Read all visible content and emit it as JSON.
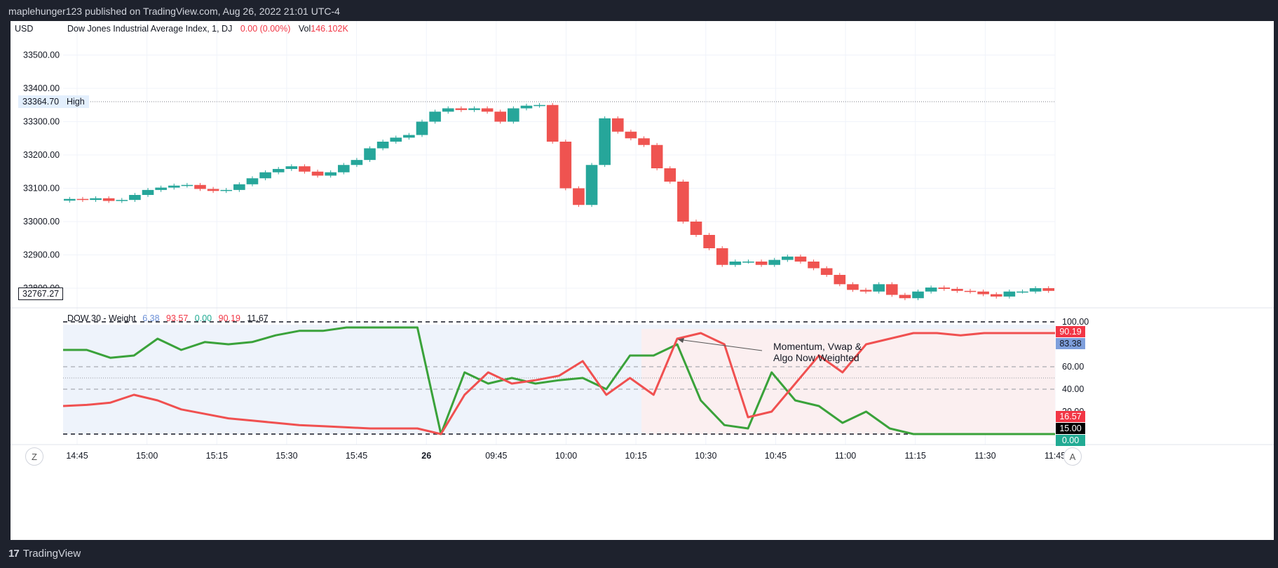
{
  "header": {
    "published": "maplehunger123 published on TradingView.com, Aug 26, 2022 21:01 UTC-4"
  },
  "main_pane": {
    "currency": "USD",
    "symbol": "Dow Jones Industrial Average Index, 1, DJ",
    "change": "0.00 (0.00%)",
    "vol_label": "Vol",
    "vol_value": "146.102K",
    "high_price": "33364.70",
    "high_label": "High",
    "last_price": "32767.27",
    "y_ticks": [
      "33500.00",
      "33400.00",
      "33300.00",
      "33200.00",
      "33100.00",
      "33000.00",
      "32900.00",
      "32800.00"
    ]
  },
  "indicator_pane": {
    "name": "DOW 30 - Weight",
    "values": [
      {
        "text": "6.38",
        "color": "#6b8fd6"
      },
      {
        "text": "93.57",
        "color": "#f23645"
      },
      {
        "text": "0.00",
        "color": "#22ab94"
      },
      {
        "text": "90.19",
        "color": "#f23645"
      },
      {
        "text": "11.67",
        "color": "#131722"
      }
    ],
    "y_ticks": [
      "100.00",
      "60.00",
      "40.00",
      "20.00"
    ],
    "badges": [
      {
        "text": "90.19",
        "bg": "#f23645",
        "fg": "#ffffff"
      },
      {
        "text": "83.38",
        "bg": "#7e9fdc",
        "fg": "#131722"
      },
      {
        "text": "16.57",
        "bg": "#f23645",
        "fg": "#ffffff"
      },
      {
        "text": "15.00",
        "bg": "#000000",
        "fg": "#ffffff"
      },
      {
        "text": "0.00",
        "bg": "#22ab94",
        "fg": "#ffffff"
      }
    ],
    "annotation": [
      "Momentum, Vwap &",
      "Algo Now Weighted"
    ]
  },
  "time_axis": {
    "labels": [
      "14:45",
      "15:00",
      "15:15",
      "15:30",
      "15:45",
      "26",
      "09:45",
      "10:00",
      "10:15",
      "10:30",
      "10:45",
      "11:00",
      "11:15",
      "11:30",
      "11:45"
    ],
    "left_button": "Z",
    "right_button": "A"
  },
  "footer": {
    "brand": "TradingView",
    "brand_mark": "17"
  },
  "colors": {
    "up": "#26a69a",
    "down": "#ef5350",
    "green_line": "#3aa23a",
    "red_line": "#f05050"
  },
  "chart_data": [
    {
      "type": "line",
      "title": "Dow Jones Industrial Average Index, 1, DJ",
      "ylabel": "USD",
      "ylim": [
        32760,
        33560
      ],
      "x": [
        "14:40",
        "14:43",
        "14:46",
        "14:49",
        "14:52",
        "14:55",
        "14:58",
        "15:01",
        "15:04",
        "15:07",
        "15:10",
        "15:13",
        "15:16",
        "15:19",
        "15:22",
        "15:25",
        "15:28",
        "15:31",
        "15:34",
        "15:37",
        "15:40",
        "15:43",
        "15:46",
        "15:49",
        "15:52",
        "15:55",
        "15:58",
        "09:30",
        "09:33",
        "09:36",
        "09:39",
        "09:42",
        "09:45",
        "09:48",
        "09:51",
        "09:54",
        "09:57",
        "10:00",
        "10:03",
        "10:06",
        "10:09",
        "10:12",
        "10:15",
        "10:18",
        "10:21",
        "10:24",
        "10:27",
        "10:30",
        "10:33",
        "10:36",
        "10:39",
        "10:42",
        "10:45",
        "10:48",
        "10:51",
        "10:54",
        "10:57",
        "11:00",
        "11:03",
        "11:06",
        "11:09",
        "11:12",
        "11:15",
        "11:18",
        "11:21",
        "11:24",
        "11:27",
        "11:30",
        "11:33",
        "11:36",
        "11:39",
        "11:42",
        "11:45",
        "11:48",
        "11:51",
        "11:54"
      ],
      "series": [
        {
          "values": [
            33068,
            33065,
            33070,
            33062,
            33065,
            33080,
            33095,
            33102,
            33108,
            33110,
            33098,
            33092,
            33095,
            33112,
            33130,
            33148,
            33158,
            33166,
            33150,
            33138,
            33148,
            33170,
            33185,
            33220,
            33240,
            33252,
            33260,
            33300,
            33330,
            33340,
            33335,
            33340,
            33330,
            33300,
            33340,
            33348,
            33350,
            33240,
            33100,
            33050,
            33170,
            33310,
            33270,
            33250,
            33230,
            33160,
            33120,
            33000,
            32960,
            32920,
            32870,
            32880,
            32880,
            32870,
            32885,
            32895,
            32880,
            32860,
            32840,
            32812,
            32795,
            32790,
            32812,
            32780,
            32770,
            32790,
            32802,
            32798,
            32792,
            32790,
            32782,
            32775,
            32790,
            32790,
            32800,
            32792
          ]
        }
      ]
    },
    {
      "type": "line",
      "title": "DOW 30 - Weight",
      "ylim": [
        0,
        100
      ],
      "x": [
        "14:40",
        "14:45",
        "14:50",
        "14:55",
        "15:00",
        "15:05",
        "15:10",
        "15:15",
        "15:20",
        "15:25",
        "15:30",
        "15:35",
        "15:40",
        "15:45",
        "15:50",
        "15:55",
        "09:30",
        "09:33",
        "09:36",
        "09:39",
        "09:42",
        "09:45",
        "09:48",
        "09:51",
        "09:54",
        "09:57",
        "10:00",
        "10:03",
        "10:06",
        "10:09",
        "10:12",
        "10:15",
        "10:18",
        "10:21",
        "10:24",
        "10:27",
        "10:30",
        "10:45",
        "11:00",
        "11:15",
        "11:30",
        "11:45",
        "11:55"
      ],
      "series": [
        {
          "name": "green",
          "values": [
            75,
            75,
            68,
            70,
            85,
            75,
            82,
            80,
            82,
            88,
            92,
            92,
            95,
            95,
            95,
            95,
            0,
            55,
            45,
            50,
            45,
            48,
            50,
            40,
            70,
            70,
            80,
            30,
            8,
            5,
            55,
            30,
            25,
            10,
            20,
            5,
            0,
            0,
            0,
            0,
            0,
            0,
            0
          ]
        },
        {
          "name": "red",
          "values": [
            25,
            26,
            28,
            35,
            30,
            22,
            18,
            14,
            12,
            10,
            8,
            7,
            6,
            5,
            5,
            5,
            0,
            35,
            55,
            45,
            48,
            52,
            65,
            35,
            50,
            35,
            85,
            90,
            80,
            15,
            20,
            45,
            70,
            55,
            80,
            85,
            90,
            90,
            88,
            90,
            90,
            90,
            90
          ]
        }
      ]
    }
  ]
}
